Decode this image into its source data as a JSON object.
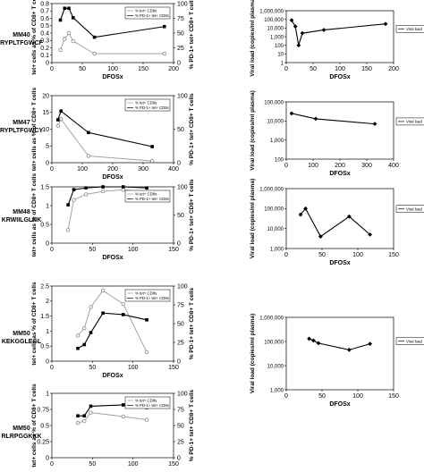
{
  "figure": {
    "rows": [
      {
        "label": "MM40",
        "epitope": "RYPLTFGWCF"
      },
      {
        "label": "MM47",
        "epitope": "RYPLTFGWCY"
      },
      {
        "label": "MM48",
        "epitope": "KRWIILGLNK"
      },
      {
        "label": "MM50",
        "epitope": "KEKGGLEGL"
      },
      {
        "label": "MM50",
        "epitope": "RLRPGGKKK"
      }
    ]
  },
  "chart_data": [
    {
      "id": "mm40-tet",
      "type": "line",
      "xlabel": "DFOSx",
      "ylabel": "tet+ cells as % of CD8+ T cells",
      "y2label": "% PD-1+ tet+ CD8+ T cells",
      "xlim": [
        0,
        200
      ],
      "xticks": [
        0,
        50,
        100,
        150,
        200
      ],
      "ylim": [
        0,
        0.8
      ],
      "yticks": [
        0,
        0.1,
        0.2,
        0.3,
        0.4,
        0.5,
        0.6,
        0.7,
        0.8
      ],
      "y2lim": [
        0,
        100
      ],
      "y2ticks": [
        0,
        25,
        50,
        75,
        100
      ],
      "legend": {
        "position": "right",
        "entries": [
          "% tet+ CD8s",
          "% PD-1+ tet+ CD8s"
        ]
      },
      "series": [
        {
          "name": "% tet+ CD8s",
          "axis": "y",
          "marker": "open-circle",
          "x": [
            14,
            21,
            28,
            35,
            70,
            185
          ],
          "y": [
            0.17,
            0.32,
            0.4,
            0.29,
            0.12,
            0.12
          ]
        },
        {
          "name": "% PD-1+ tet+ CD8s",
          "axis": "y2",
          "marker": "filled-square",
          "x": [
            14,
            21,
            28,
            35,
            70,
            185
          ],
          "y": [
            72,
            92,
            92,
            76,
            43,
            61
          ]
        }
      ]
    },
    {
      "id": "mm40-vl",
      "type": "line",
      "xlabel": "DFOSx",
      "ylabel": "Viral load (copies/ml plasma)",
      "yscale": "log",
      "xlim": [
        0,
        200
      ],
      "xticks": [
        0,
        50,
        100,
        150,
        200
      ],
      "ylim": [
        1,
        1000000
      ],
      "yticks": [
        1,
        10,
        100,
        1000,
        10000,
        100000,
        1000000
      ],
      "yticklabels": [
        "1",
        "10",
        "100",
        "1,000",
        "10,000",
        "100,000",
        "1,000,000"
      ],
      "legend": {
        "position": "right",
        "entries": [
          "Viral load"
        ]
      },
      "series": [
        {
          "name": "Viral load",
          "marker": "filled-diamond",
          "x": [
            10,
            17,
            23,
            30,
            70,
            185
          ],
          "y": [
            80000,
            15000,
            100,
            2500,
            6000,
            30000
          ]
        }
      ]
    },
    {
      "id": "mm47-tet",
      "type": "line",
      "xlabel": "DFOSx",
      "ylabel": "tet+ cells as % of CD8+ T cells",
      "y2label": "% PD-1+ tet+ CD8+ T cells",
      "xlim": [
        0,
        400
      ],
      "xticks": [
        0,
        100,
        200,
        300,
        400
      ],
      "ylim": [
        0,
        20
      ],
      "yticks": [
        0,
        5,
        10,
        15,
        20
      ],
      "y2lim": [
        0,
        100
      ],
      "y2ticks": [
        0,
        50,
        100
      ],
      "legend": {
        "position": "right",
        "entries": [
          "% tet+ CD8s",
          "% PD-1+ tet+ CD8s"
        ]
      },
      "series": [
        {
          "name": "% tet+ CD8s",
          "axis": "y",
          "marker": "open-circle",
          "x": [
            20,
            30,
            120,
            330
          ],
          "y": [
            11,
            13,
            2,
            0.5
          ]
        },
        {
          "name": "% PD-1+ tet+ CD8s",
          "axis": "y2",
          "marker": "filled-square",
          "x": [
            20,
            30,
            120,
            330
          ],
          "y": [
            64,
            77,
            45,
            24
          ]
        }
      ]
    },
    {
      "id": "mm47-vl",
      "type": "line",
      "xlabel": "DFOSx",
      "ylabel": "Viral load (copies/ml plasma)",
      "yscale": "log",
      "xlim": [
        0,
        400
      ],
      "xticks": [
        0,
        100,
        200,
        300,
        400
      ],
      "ylim": [
        100,
        100000
      ],
      "yticks": [
        100,
        1000,
        10000,
        100000
      ],
      "yticklabels": [
        "100",
        "1,000",
        "10,000",
        "100,000"
      ],
      "legend": {
        "position": "right",
        "entries": [
          "Viral load"
        ]
      },
      "series": [
        {
          "name": "Viral load",
          "marker": "filled-diamond",
          "x": [
            20,
            110,
            330
          ],
          "y": [
            25000,
            13000,
            7000
          ]
        }
      ]
    },
    {
      "id": "mm48-tet",
      "type": "line",
      "xlabel": "DFOSx",
      "ylabel": "tet+ cells as % of CD8+ T cells",
      "y2label": "% PD-1+ tet+ CD8+ T cells",
      "xlim": [
        0,
        150
      ],
      "xticks": [
        0,
        50,
        100,
        150
      ],
      "ylim": [
        0,
        1.5
      ],
      "yticks": [
        0,
        0.5,
        1,
        1.5
      ],
      "y2lim": [
        0,
        100
      ],
      "y2ticks": [
        0,
        50,
        100
      ],
      "legend": {
        "position": "right",
        "entries": [
          "% tet+ CD8s",
          "% PD-1+ tet+ CD8s"
        ]
      },
      "series": [
        {
          "name": "% tet+ CD8s",
          "axis": "y",
          "marker": "open-circle",
          "x": [
            20,
            27,
            42,
            63,
            88,
            117
          ],
          "y": [
            0.35,
            1.15,
            1.3,
            1.38,
            1.42,
            1.35
          ]
        },
        {
          "name": "% PD-1+ tet+ CD8s",
          "axis": "y2",
          "marker": "filled-square",
          "x": [
            20,
            27,
            42,
            63,
            88,
            117
          ],
          "y": [
            68,
            95,
            98,
            100,
            100,
            98
          ]
        }
      ]
    },
    {
      "id": "mm48-vl",
      "type": "line",
      "xlabel": "DFOSx",
      "ylabel": "Viral load (copies/ml plasma)",
      "yscale": "log",
      "xlim": [
        0,
        150
      ],
      "xticks": [
        0,
        50,
        100,
        150
      ],
      "ylim": [
        1000,
        1000000
      ],
      "yticks": [
        1000,
        10000,
        100000,
        1000000
      ],
      "yticklabels": [
        "1,000",
        "10,000",
        "100,000",
        "1,000,000"
      ],
      "legend": {
        "position": "right",
        "entries": [
          "Viral load"
        ]
      },
      "series": [
        {
          "name": "Viral load",
          "marker": "filled-diamond",
          "x": [
            20,
            27,
            48,
            88,
            117
          ],
          "y": [
            50000,
            100000,
            4000,
            40000,
            5000
          ]
        }
      ]
    },
    {
      "id": "mm50a-tet",
      "type": "line",
      "xlabel": "DFOSx",
      "ylabel": "tet+ cells as % of CD8+ T cells",
      "y2label": "% PD-1+ tet+ CD8+ T cells",
      "xlim": [
        0,
        150
      ],
      "xticks": [
        0,
        50,
        100,
        150
      ],
      "ylim": [
        0,
        2.5
      ],
      "yticks": [
        0,
        0.5,
        1,
        1.5,
        2,
        2.5
      ],
      "y2lim": [
        0,
        100
      ],
      "y2ticks": [
        0,
        25,
        50,
        75,
        100
      ],
      "legend": {
        "position": "right",
        "entries": [
          "% tet+ CD8s",
          "% PD-1+ tet+ CD8s"
        ]
      },
      "series": [
        {
          "name": "% tet+ CD8s",
          "axis": "y",
          "marker": "open-circle",
          "x": [
            32,
            40,
            48,
            63,
            88,
            117
          ],
          "y": [
            0.85,
            1.1,
            1.8,
            2.35,
            1.9,
            0.3
          ]
        },
        {
          "name": "% PD-1+ tet+ CD8s",
          "axis": "y2",
          "marker": "filled-square",
          "x": [
            32,
            40,
            48,
            63,
            88,
            117
          ],
          "y": [
            17,
            22,
            38,
            64,
            62,
            55
          ]
        }
      ]
    },
    {
      "id": "mm50-vl",
      "type": "line",
      "xlabel": "DFOSx",
      "ylabel": "Viral load (copies/ml plasma)",
      "yscale": "log",
      "xlim": [
        0,
        150
      ],
      "xticks": [
        0,
        50,
        100,
        150
      ],
      "ylim": [
        1000,
        1000000
      ],
      "yticks": [
        1000,
        10000,
        100000,
        1000000
      ],
      "yticklabels": [
        "1,000",
        "10,000",
        "100,000",
        "1,000,000"
      ],
      "legend": {
        "position": "right",
        "entries": [
          "Viral load"
        ]
      },
      "series": [
        {
          "name": "Viral load",
          "marker": "filled-diamond",
          "x": [
            32,
            38,
            45,
            88,
            117
          ],
          "y": [
            130000,
            110000,
            85000,
            45000,
            80000
          ]
        }
      ]
    },
    {
      "id": "mm50b-tet",
      "type": "line",
      "xlabel": "DFOS",
      "ylabel": "tet+ cells as % of CD8+ T cells",
      "y2label": "% PD-1+ tet+ CD8+ T cells",
      "xlim": [
        0,
        150
      ],
      "xticks": [
        0,
        50,
        100,
        150
      ],
      "ylim": [
        0,
        1
      ],
      "yticks": [
        0,
        0.25,
        0.5,
        0.75,
        1
      ],
      "y2lim": [
        0,
        100
      ],
      "y2ticks": [
        0,
        25,
        50,
        75,
        100
      ],
      "legend": {
        "position": "right",
        "entries": [
          "% tet+ CD8s",
          "% PD-1+ tet+ CD8s"
        ]
      },
      "series": [
        {
          "name": "% tet+ CD8s",
          "axis": "y",
          "marker": "open-circle",
          "x": [
            32,
            40,
            48,
            88,
            117
          ],
          "y": [
            0.54,
            0.57,
            0.7,
            0.64,
            0.59
          ]
        },
        {
          "name": "% PD-1+ tet+ CD8s",
          "axis": "y2",
          "marker": "filled-square",
          "x": [
            32,
            40,
            48,
            88,
            117
          ],
          "y": [
            65,
            65,
            80,
            82,
            78
          ]
        }
      ]
    }
  ]
}
